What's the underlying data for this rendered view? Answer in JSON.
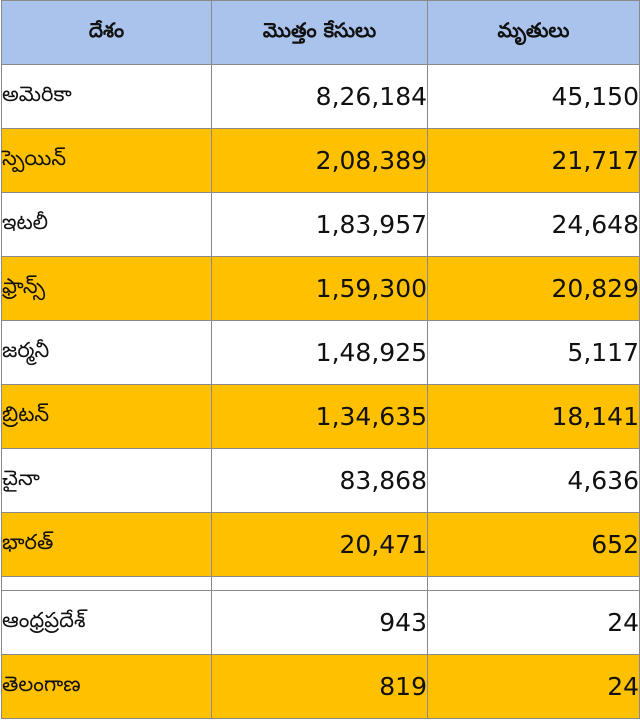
{
  "header": {
    "country": "దేశం",
    "cases": "మొత్తం కేసులు",
    "deaths": "మృతులు"
  },
  "rows": [
    {
      "country": "అమెరికా",
      "cases": "8,26,184",
      "deaths": "45,150"
    },
    {
      "country": "స్పెయిన్",
      "cases": "2,08,389",
      "deaths": "21,717"
    },
    {
      "country": "ఇటలీ",
      "cases": "1,83,957",
      "deaths": "24,648"
    },
    {
      "country": "ఫ్రాన్స్",
      "cases": "1,59,300",
      "deaths": "20,829"
    },
    {
      "country": "జర్మనీ",
      "cases": "1,48,925",
      "deaths": "5,117"
    },
    {
      "country": "బ్రిటన్",
      "cases": "1,34,635",
      "deaths": "18,141"
    },
    {
      "country": "చైనా",
      "cases": "83,868",
      "deaths": "4,636"
    },
    {
      "country": "భారత్",
      "cases": "20,471",
      "deaths": "652"
    }
  ],
  "states": [
    {
      "country": "ఆంధ్రప్రదేశ్",
      "cases": "943",
      "deaths": "24"
    },
    {
      "country": "తెలంగాణ",
      "cases": "819",
      "deaths": "24"
    }
  ],
  "colors": {
    "header_bg": "#a9c3ec",
    "highlight_row": "#ffc000",
    "plain_row": "#ffffff",
    "border": "#8a8a8a"
  }
}
